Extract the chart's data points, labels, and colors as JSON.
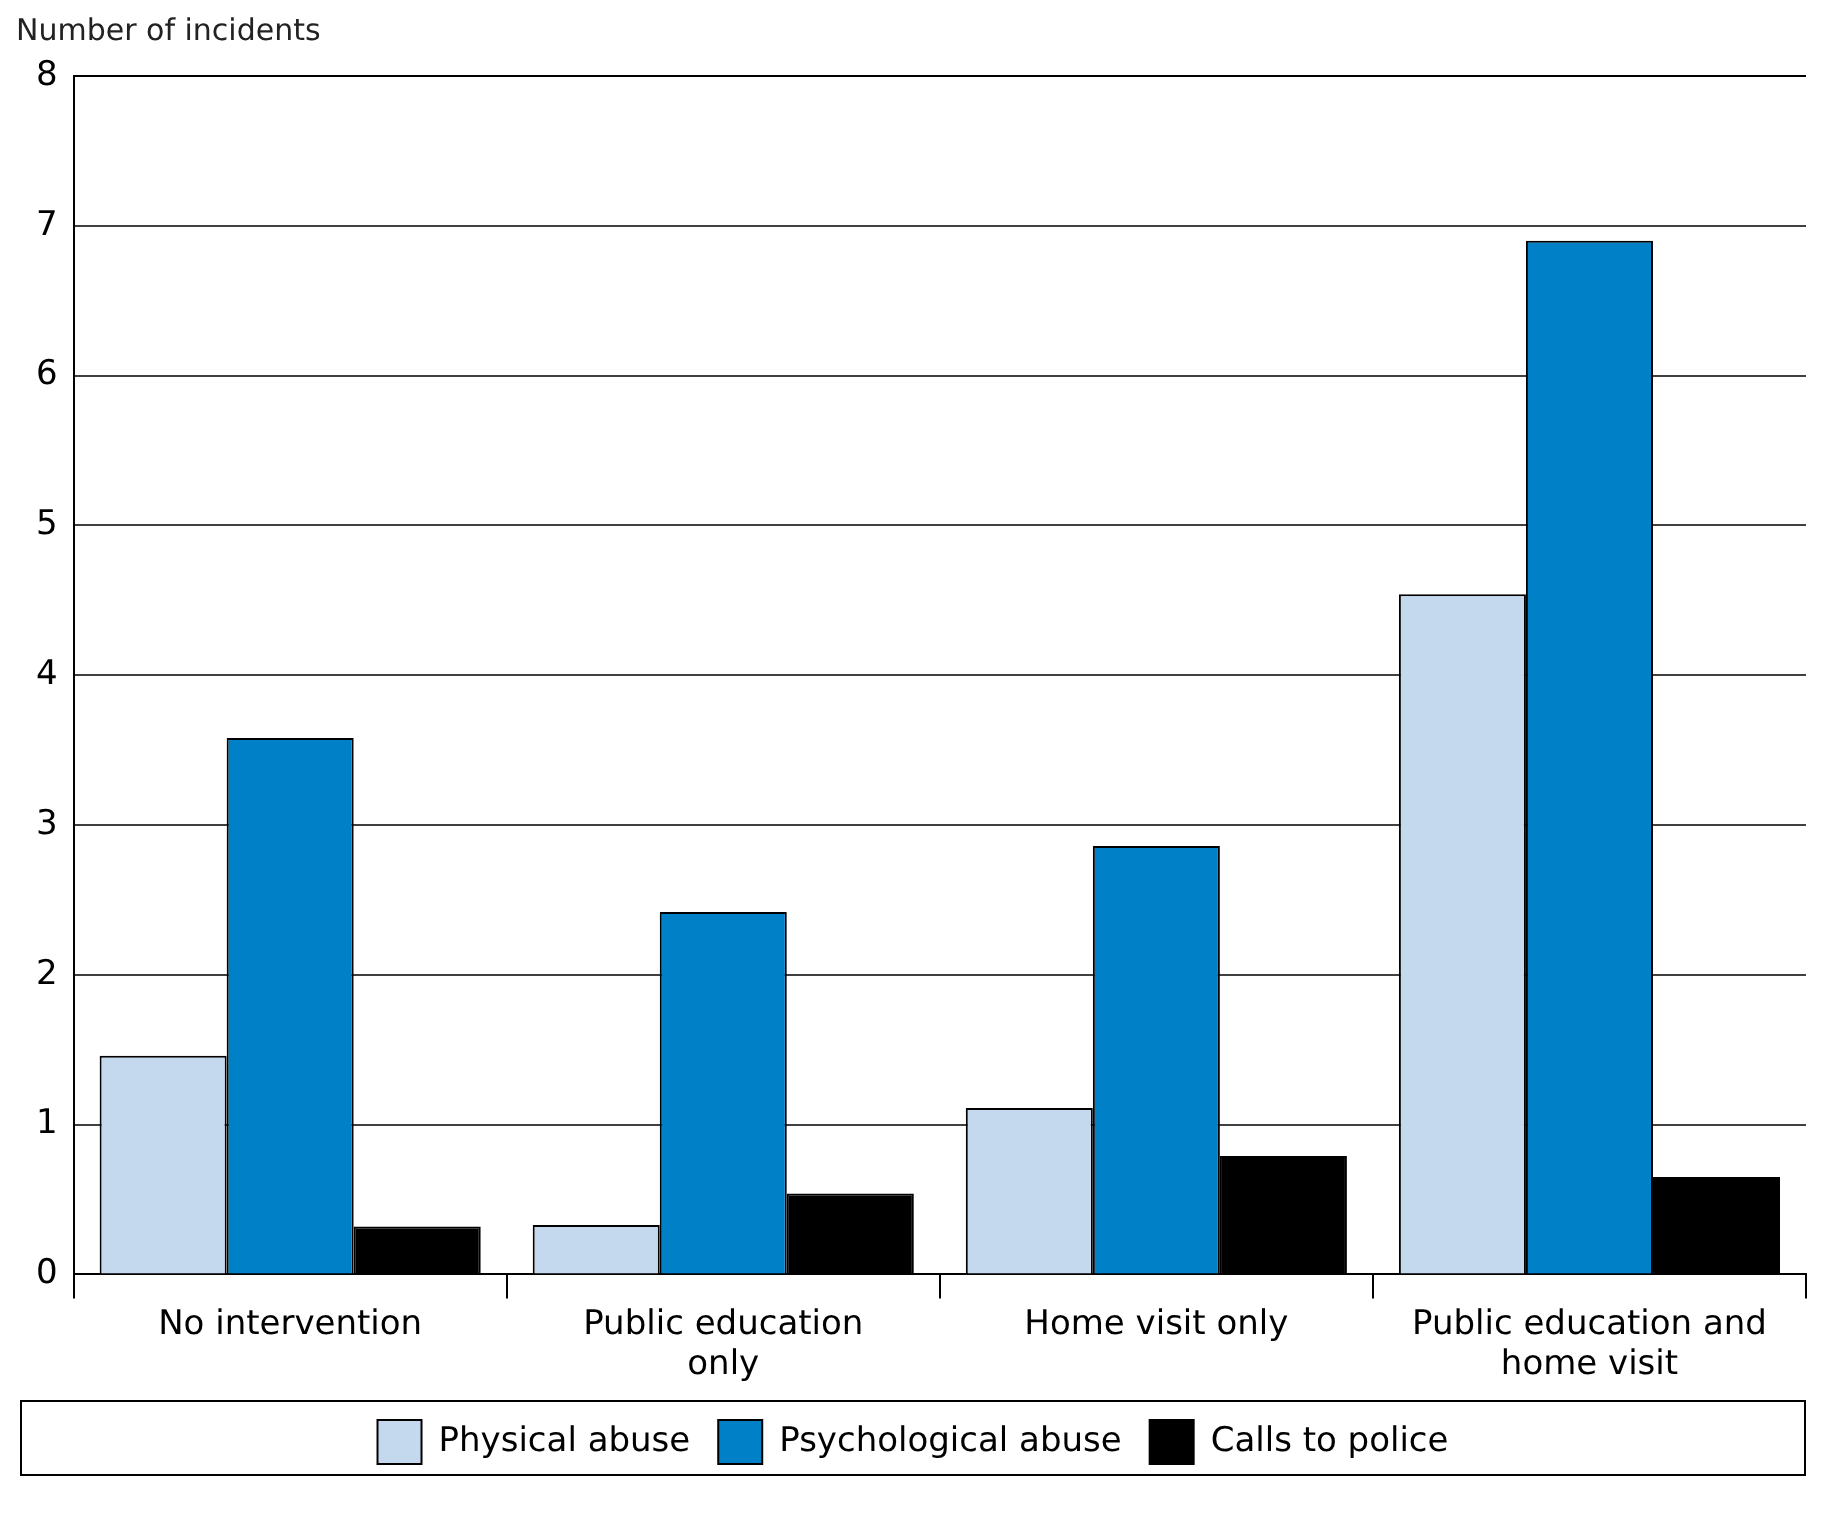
{
  "chart_data": {
    "type": "bar",
    "ylabel": "Number of incidents",
    "categories": [
      "No intervention",
      "Public education only",
      "Home visit only",
      "Public education and home visit"
    ],
    "series": [
      {
        "name": "Physical abuse",
        "color": "#c5d9ee",
        "values": [
          1.46,
          0.33,
          1.11,
          4.54
        ]
      },
      {
        "name": "Psychological abuse",
        "color": "#0080c6",
        "values": [
          3.58,
          2.42,
          2.86,
          6.9
        ]
      },
      {
        "name": "Calls to police",
        "color": "#000000",
        "values": [
          0.32,
          0.54,
          0.79,
          0.65
        ]
      }
    ],
    "ylim": [
      0,
      8
    ],
    "yticks": [
      0,
      1,
      2,
      3,
      4,
      5,
      6,
      7,
      8
    ],
    "grid": "y",
    "legend": "bottom"
  }
}
